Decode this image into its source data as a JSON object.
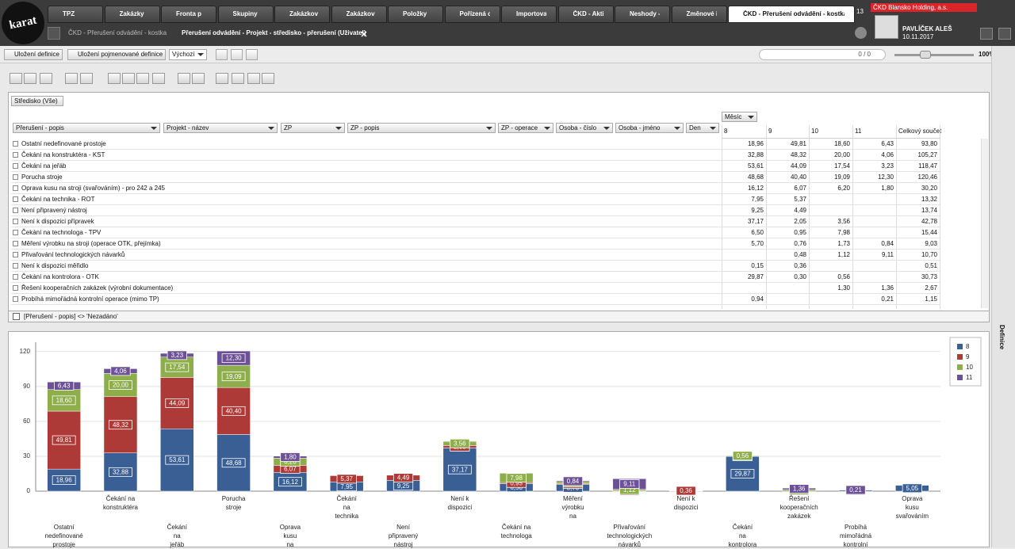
{
  "app": {
    "logo": "karat",
    "tabs": [
      "TPZ",
      "Zakázky",
      "Fronta p",
      "Skupiny",
      "Zakázkov",
      "Zakázkov",
      "Položky",
      "Pořízená o",
      "Importova",
      "ČKD - Aktiv",
      "Neshody -",
      "Změnové ř",
      "ČKD - Přerušení odvádění - kostka"
    ],
    "tab_count": "13",
    "company": "ČKD Blansko Holding, a.s.",
    "user": "PAVLÍČEK ALEŠ",
    "date": "10.11.2017",
    "breadcrumb": [
      "ČKD - Přerušení odvádění - kostka",
      "Přerušení odvádění - Projekt - středisko - přerušení (Uživatel)"
    ],
    "toolbar": {
      "save": "Uložení definice",
      "save_named": "Uložení pojmenované definice",
      "preset": "Výchozí",
      "search_count": "0 / 0",
      "zoom": "100%"
    },
    "side_panel": "Definice"
  },
  "pivot": {
    "filter_field": "Středisko (Vše)",
    "column_field": "Měsíc",
    "row_fields": [
      "Přerušení - popis",
      "Projekt - název",
      "ZP",
      "ZP - popis",
      "ZP - operace",
      "Osoba - číslo",
      "Osoba - jméno",
      "Den"
    ],
    "columns": [
      "8",
      "9",
      "10",
      "11",
      "Celkový součet"
    ],
    "rows": [
      {
        "label": "Ostatní nedefinované prostoje",
        "cells": [
          "18,96",
          "49,81",
          "18,60",
          "6,43",
          "93,80"
        ]
      },
      {
        "label": "Čekání na konstruktéra - KST",
        "cells": [
          "32,88",
          "48,32",
          "20,00",
          "4,06",
          "105,27"
        ]
      },
      {
        "label": "Čekání na jeřáb",
        "cells": [
          "53,61",
          "44,09",
          "17,54",
          "3,23",
          "118,47"
        ]
      },
      {
        "label": "Porucha stroje",
        "cells": [
          "48,68",
          "40,40",
          "19,09",
          "12,30",
          "120,46"
        ]
      },
      {
        "label": "Oprava kusu na stroji (svařováním) - pro 242 a 245",
        "cells": [
          "16,12",
          "6,07",
          "6,20",
          "1,80",
          "30,20"
        ]
      },
      {
        "label": "Čekání na technika - ROT",
        "cells": [
          "7,95",
          "5,37",
          null,
          null,
          "13,32"
        ]
      },
      {
        "label": "Není připravený nástroj",
        "cells": [
          "9,25",
          "4,49",
          null,
          null,
          "13,74"
        ]
      },
      {
        "label": "Není k dispozici přípravek",
        "cells": [
          "37,17",
          "2,05",
          "3,56",
          null,
          "42,78"
        ]
      },
      {
        "label": "Čekání na technologa - TPV",
        "cells": [
          "6,50",
          "0,95",
          "7,98",
          null,
          "15,44"
        ]
      },
      {
        "label": "Měření výrobku na stroji (operace OTK, přejímka)",
        "cells": [
          "5,70",
          "0,76",
          "1,73",
          "0,84",
          "9,03"
        ]
      },
      {
        "label": "Přivařování technologických návarků",
        "cells": [
          null,
          "0,48",
          "1,12",
          "9,11",
          "10,70"
        ]
      },
      {
        "label": "Není k dispozici měřidlo",
        "cells": [
          "0,15",
          "0,36",
          null,
          null,
          "0,51"
        ]
      },
      {
        "label": "Čekání na kontrolora - OTK",
        "cells": [
          "29,87",
          "0,30",
          "0,56",
          null,
          "30,73"
        ]
      },
      {
        "label": "Řešení kooperačních zakázek (výrobní dokumentace)",
        "cells": [
          null,
          null,
          "1,30",
          "1,36",
          "2,67"
        ]
      },
      {
        "label": "Probíhá mimořádná kontrolní operace (mimo TP)",
        "cells": [
          "0,94",
          null,
          null,
          "0,21",
          "1,15"
        ]
      }
    ],
    "filter_expression": "[Přerušení - popis] <> 'Nezadáno'"
  },
  "chart_data": {
    "type": "stacked_bar",
    "categories": [
      "Ostatní nedefinované prostoje",
      "Čekání na konstruktéra",
      "Čekání na jeřáb",
      "Porucha stroje",
      "Oprava kusu na",
      "Čekání na technika",
      "Není připravený nástroj",
      "Není k dispozici",
      "Čekání na technologa",
      "Měření výrobku na",
      "Přivařování technologických návarků",
      "Není k dispozici",
      "Čekání na kontrolora",
      "Řešení kooperačních zakázek",
      "Probíhá mimořádná kontrolní",
      "Oprava kusu svařováním"
    ],
    "series": [
      {
        "name": "8",
        "color": "#3a5f95",
        "values": [
          18.96,
          32.88,
          53.61,
          48.68,
          16.12,
          7.95,
          9.25,
          37.17,
          6.5,
          5.7,
          null,
          0.15,
          29.87,
          null,
          0.94,
          5.05
        ],
        "value_labels": [
          "18,96",
          "32,88",
          "53,61",
          "48,68",
          "16,12",
          "7,95",
          "9,25",
          "37,17",
          "6,50",
          "5,70",
          null,
          "0,15",
          "29,87",
          null,
          "0,94",
          "5,05"
        ]
      },
      {
        "name": "9",
        "color": "#ae3a37",
        "values": [
          49.81,
          48.32,
          44.09,
          40.4,
          6.07,
          5.37,
          4.49,
          2.05,
          0.95,
          0.76,
          0.48,
          0.36,
          0.3,
          null,
          null,
          null
        ],
        "value_labels": [
          "49,81",
          "48,32",
          "44,09",
          "40,40",
          "6,07",
          "5,37",
          "4,49",
          "2,05",
          "0,95",
          "0,76",
          "0,48",
          "0,36",
          "0,30",
          null,
          null,
          null
        ]
      },
      {
        "name": "10",
        "color": "#8eae4c",
        "values": [
          18.6,
          20.0,
          17.54,
          19.09,
          6.2,
          null,
          null,
          3.56,
          7.98,
          1.73,
          1.12,
          null,
          0.56,
          1.3,
          null,
          null
        ],
        "value_labels": [
          "18,60",
          "20,00",
          "17,54",
          "19,09",
          "6,20",
          null,
          null,
          "3,56",
          "7,98",
          "1,73",
          "1,12",
          null,
          "0,56",
          "1,30",
          null,
          null
        ]
      },
      {
        "name": "11",
        "color": "#6c5196",
        "values": [
          6.43,
          4.06,
          3.23,
          12.3,
          1.8,
          null,
          null,
          null,
          null,
          0.84,
          9.11,
          null,
          null,
          1.36,
          0.21,
          null
        ],
        "value_labels": [
          "6,43",
          "4,06",
          "3,23",
          "12,30",
          "1,80",
          null,
          null,
          null,
          null,
          "0,84",
          "9,11",
          null,
          null,
          "1,36",
          "0,21",
          null
        ]
      }
    ],
    "ylim": [
      0,
      128
    ],
    "yticks": [
      0,
      30,
      60,
      90,
      120
    ],
    "grid": true,
    "legend": "right"
  }
}
